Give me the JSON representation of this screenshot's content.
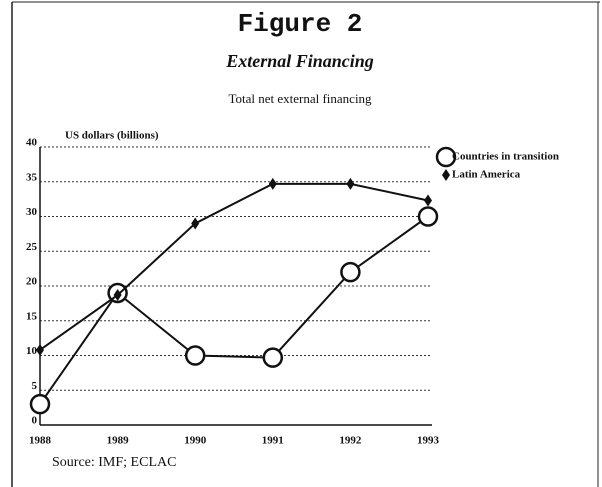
{
  "chart_data": {
    "type": "line",
    "title": "Figure 2",
    "subtitle": "External Financing",
    "chart_subtitle": "Total net external financing",
    "y_label": "US dollars (billions)",
    "source": "Source: IMF; ECLAC",
    "categories": [
      "1988",
      "1989",
      "1990",
      "1991",
      "1992",
      "1993"
    ],
    "series": [
      {
        "name": "Countries in transition",
        "color": "#111111",
        "marker": "circle",
        "values": [
          3,
          19,
          10,
          9.7,
          22,
          30
        ]
      },
      {
        "name": "Latin America",
        "color": "#111111",
        "marker": "diamond",
        "values": [
          10.8,
          18.7,
          29,
          34.7,
          34.7,
          32.3
        ]
      }
    ],
    "ylim": [
      0,
      40
    ],
    "yticks": [
      0,
      5,
      10,
      15,
      20,
      25,
      30,
      35,
      40
    ],
    "grid": true
  }
}
